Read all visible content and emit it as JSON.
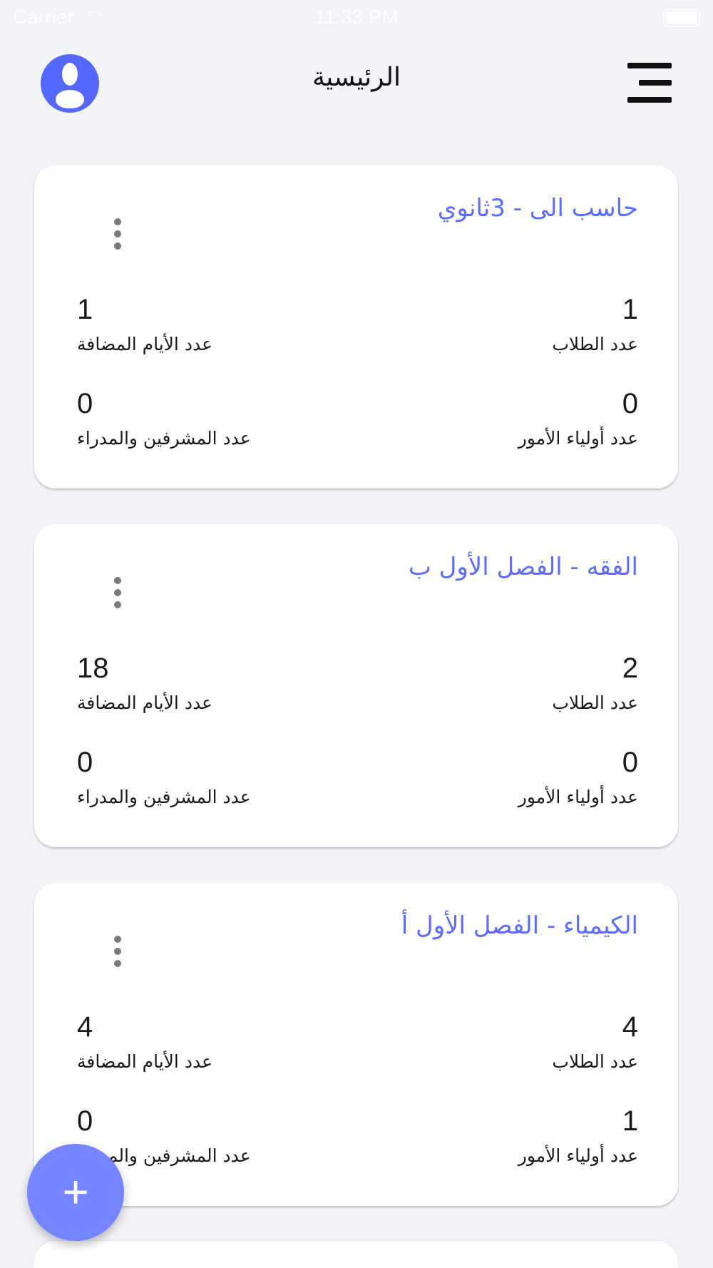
{
  "status_bar": {
    "carrier": "Carrier",
    "time": "11:33 PM",
    "wifi_icon": "wifi-icon",
    "battery_icon": "battery-icon"
  },
  "header": {
    "title": "الرئيسية",
    "avatar_icon": "user-avatar-icon",
    "menu_icon": "hamburger-menu-icon"
  },
  "colors": {
    "accent": "#5b6cff",
    "fab": "#7584ff",
    "background": "#f3f4f8"
  },
  "cards": [
    {
      "title": "حاسب الى - 3ثانوي",
      "students_label": "عدد الطلاب",
      "students": "1",
      "days_label": "عدد الأيام المضافة",
      "days": "1",
      "parents_label": "عدد أولياء الأمور",
      "parents": "0",
      "supervisors_label": "عدد المشرفين والمدراء",
      "supervisors": "0"
    },
    {
      "title": "الفقه - الفصل الأول ب",
      "students_label": "عدد الطلاب",
      "students": "2",
      "days_label": "عدد الأيام المضافة",
      "days": "18",
      "parents_label": "عدد أولياء الأمور",
      "parents": "0",
      "supervisors_label": "عدد المشرفين والمدراء",
      "supervisors": "0"
    },
    {
      "title": "الكيمياء - الفصل الأول أ",
      "students_label": "عدد الطلاب",
      "students": "4",
      "days_label": "عدد الأيام المضافة",
      "days": "4",
      "parents_label": "عدد أولياء الأمور",
      "parents": "1",
      "supervisors_label": "عدد المشرفين والمدراء",
      "supervisors": "0"
    }
  ],
  "fab": {
    "label": "+",
    "icon": "plus-icon"
  }
}
